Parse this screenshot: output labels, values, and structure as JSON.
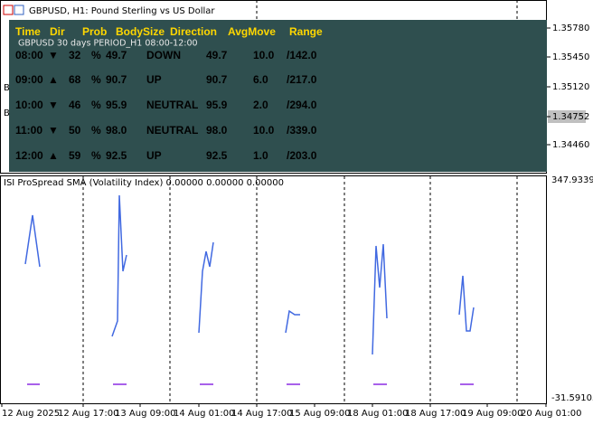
{
  "window": {
    "title": "GBPUSD, H1: Pound Sterling vs US Dollar"
  },
  "price_axis": [
    "1.35780",
    "1.35450",
    "1.35120",
    "1.34752",
    "1.34460"
  ],
  "left_marks": [
    "B",
    "B"
  ],
  "panel": {
    "header": [
      "Time",
      "Dir",
      "Prob",
      "BodySize",
      "Direction",
      "AvgMove",
      "Range"
    ],
    "subtitle": "GBPUSD 30 days PERIOD_H1 08:00-12:00",
    "rows": [
      {
        "color": "#ff0000",
        "cells": [
          "08:00",
          "▼",
          "32",
          "%",
          "49.7",
          "DOWN",
          "49.7",
          "10.0",
          "/142.0"
        ]
      },
      {
        "color": "#7cfc00",
        "cells": [
          "09:00",
          "▲",
          "68",
          "%",
          "90.7",
          "UP",
          "90.7",
          "6.0",
          "/217.0"
        ]
      },
      {
        "color": "#ff0000",
        "cells": [
          "10:00",
          "▼",
          "46",
          "%",
          "95.9",
          "NEUTRAL",
          "95.9",
          "2.0",
          "/294.0"
        ]
      },
      {
        "color": "#ff0000",
        "cells": [
          "11:00",
          "▼",
          "50",
          "%",
          "98.0",
          "NEUTRAL",
          "98.0",
          "10.0",
          "/339.0"
        ]
      },
      {
        "color": "#7cfc00",
        "cells": [
          "12:00",
          "▲",
          "59",
          "%",
          "92.5",
          "UP",
          "92.5",
          "1.0",
          "/203.0"
        ]
      }
    ]
  },
  "indicator": {
    "label": "ISI ProSpread SMA (Volatility Index) 0.00000 0.00000 0.00000",
    "axis_top": "347.93399",
    "axis_bottom": "-31.59105"
  },
  "time_axis": [
    "12 Aug 2025",
    "12 Aug 17:00",
    "13 Aug 09:00",
    "14 Aug 01:00",
    "14 Aug 17:00",
    "15 Aug 09:00",
    "18 Aug 01:00",
    "18 Aug 17:00",
    "19 Aug 09:00",
    "20 Aug 01:00"
  ]
}
